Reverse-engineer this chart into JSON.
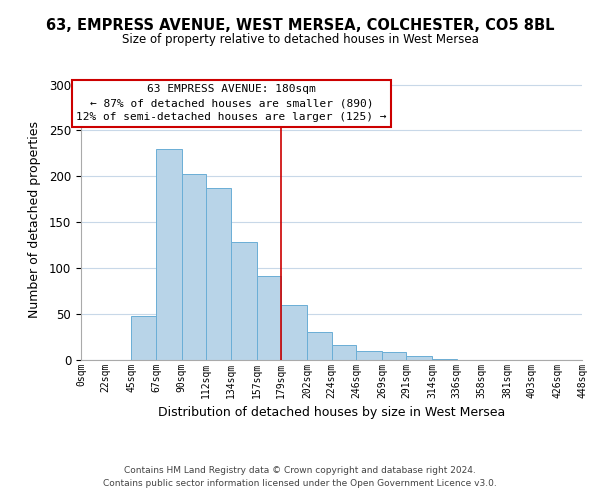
{
  "title": "63, EMPRESS AVENUE, WEST MERSEA, COLCHESTER, CO5 8BL",
  "subtitle": "Size of property relative to detached houses in West Mersea",
  "xlabel": "Distribution of detached houses by size in West Mersea",
  "ylabel": "Number of detached properties",
  "footer_line1": "Contains HM Land Registry data © Crown copyright and database right 2024.",
  "footer_line2": "Contains public sector information licensed under the Open Government Licence v3.0.",
  "bin_labels": [
    "0sqm",
    "22sqm",
    "45sqm",
    "67sqm",
    "90sqm",
    "112sqm",
    "134sqm",
    "157sqm",
    "179sqm",
    "202sqm",
    "224sqm",
    "246sqm",
    "269sqm",
    "291sqm",
    "314sqm",
    "336sqm",
    "358sqm",
    "381sqm",
    "403sqm",
    "426sqm",
    "448sqm"
  ],
  "bin_edges": [
    0,
    22,
    45,
    67,
    90,
    112,
    134,
    157,
    179,
    202,
    224,
    246,
    269,
    291,
    314,
    336,
    358,
    381,
    403,
    426,
    448
  ],
  "bar_heights": [
    0,
    0,
    48,
    230,
    203,
    187,
    128,
    91,
    60,
    30,
    16,
    10,
    9,
    4,
    1,
    0,
    0,
    0,
    0,
    0,
    0
  ],
  "bar_color": "#b8d4e8",
  "bar_edgecolor": "#6aaed6",
  "ylim": [
    0,
    305
  ],
  "yticks": [
    0,
    50,
    100,
    150,
    200,
    250,
    300
  ],
  "property_line_x": 179,
  "property_line_color": "#cc0000",
  "annotation_title": "63 EMPRESS AVENUE: 180sqm",
  "annotation_line1": "← 87% of detached houses are smaller (890)",
  "annotation_line2": "12% of semi-detached houses are larger (125) →",
  "background_color": "#ffffff",
  "grid_color": "#c8d8e8"
}
